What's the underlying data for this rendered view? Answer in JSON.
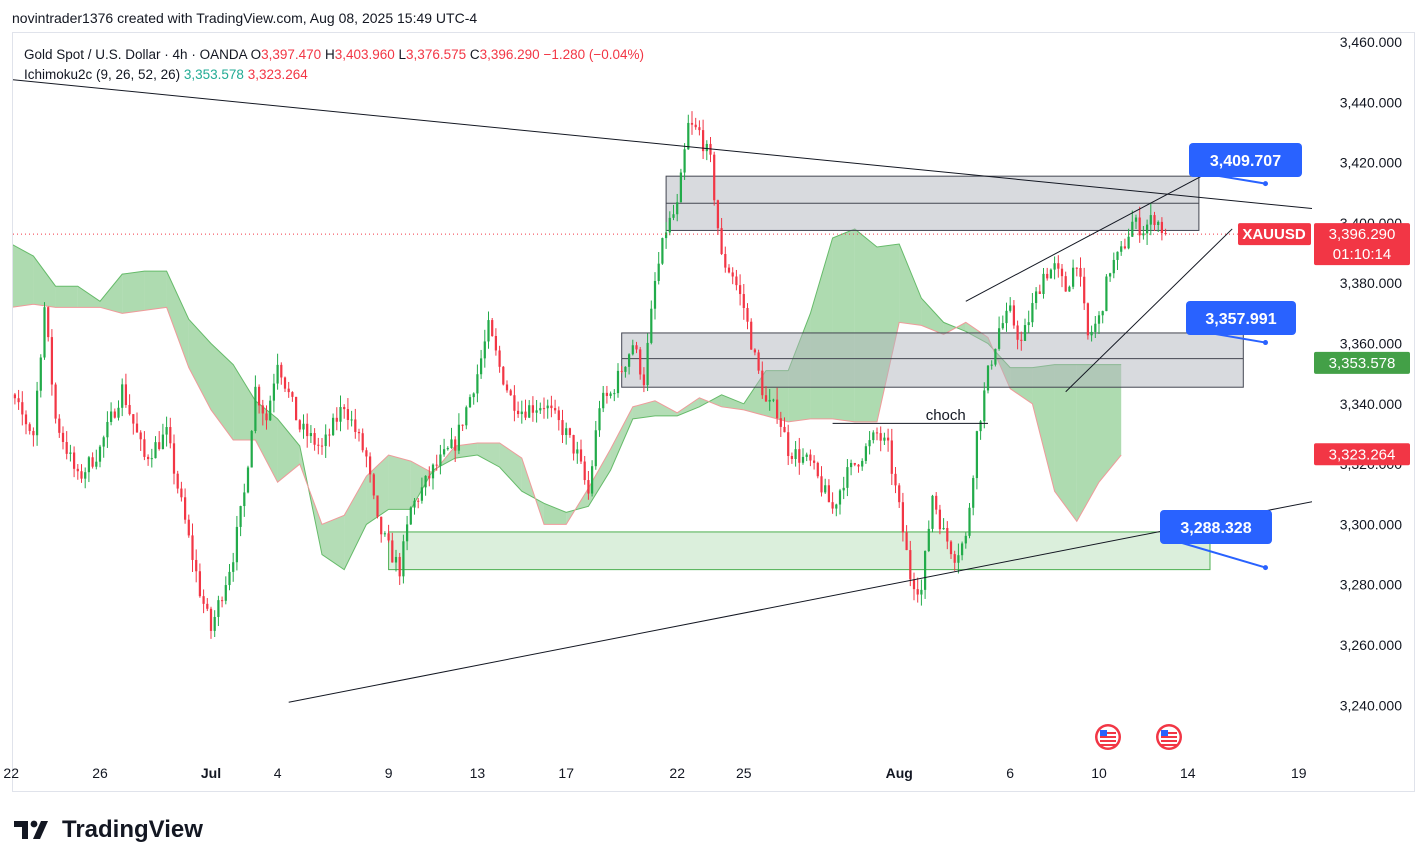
{
  "header": {
    "text": "novintrader1376 created with TradingView.com, Aug 08, 2025 15:49 UTC-4"
  },
  "legend": {
    "symbol": "Gold Spot / U.S. Dollar · 4h · OANDA",
    "o_label": "O",
    "o": "3,397.470",
    "h_label": "H",
    "h": "3,403.960",
    "l_label": "L",
    "l": "3,376.575",
    "c_label": "C",
    "c": "3,396.290",
    "change": "−1.280 (−0.04%)",
    "indicator": "Ichimoku2c (9, 26, 52, 26)",
    "ind_val1": "3,353.578",
    "ind_val2": "3,323.264"
  },
  "colors": {
    "up": "#089981",
    "candle_up": "#22ab4a",
    "down": "#f23645",
    "cloud": "#4caf50",
    "zone_gray": "#b2b5be",
    "zone_green": "#4caf50",
    "badge_blue": "#2962ff",
    "price_tag": "#f23645",
    "ind_green": "#43a047"
  },
  "brand": {
    "name": "TradingView"
  },
  "chart_data": {
    "type": "candlestick",
    "title": "Gold Spot / U.S. Dollar · 4h · OANDA",
    "symbol": "XAUUSD",
    "ylim": [
      3230,
      3465
    ],
    "y_ticks": [
      "3,460.000",
      "3,440.000",
      "3,420.000",
      "3,400.000",
      "3,380.000",
      "3,360.000",
      "3,340.000",
      "3,320.000",
      "3,300.000",
      "3,280.000",
      "3,260.000",
      "3,240.000"
    ],
    "y_tick_values": [
      3460,
      3440,
      3420,
      3400,
      3380,
      3360,
      3340,
      3320,
      3300,
      3280,
      3260,
      3240
    ],
    "x_ticks": [
      "22",
      "26",
      "Jul",
      "4",
      "9",
      "13",
      "17",
      "22",
      "25",
      "Aug",
      "6",
      "10",
      "14",
      "19"
    ],
    "x_tick_days": [
      -9,
      -5,
      0,
      3,
      8,
      12,
      16,
      21,
      24,
      31,
      36,
      40,
      44,
      49
    ],
    "x_unit": "days since Jul 1, 2025",
    "bold_ticks": [
      "Jul",
      "Aug"
    ],
    "waypoints": [
      [
        -10,
        3354
      ],
      [
        -9,
        3342
      ],
      [
        -8,
        3330
      ],
      [
        -7.5,
        3372
      ],
      [
        -7,
        3335
      ],
      [
        -6,
        3315
      ],
      [
        -5,
        3325
      ],
      [
        -4,
        3345
      ],
      [
        -3,
        3322
      ],
      [
        -2,
        3330
      ],
      [
        -1,
        3295
      ],
      [
        -0.5,
        3278
      ],
      [
        0,
        3265
      ],
      [
        1,
        3290
      ],
      [
        1.5,
        3310
      ],
      [
        2,
        3345
      ],
      [
        2.5,
        3335
      ],
      [
        3,
        3355
      ],
      [
        3.5,
        3343
      ],
      [
        4,
        3332
      ],
      [
        5,
        3325
      ],
      [
        6,
        3340
      ],
      [
        7,
        3322
      ],
      [
        7.5,
        3300
      ],
      [
        8,
        3292
      ],
      [
        8.5,
        3285
      ],
      [
        9,
        3305
      ],
      [
        10,
        3318
      ],
      [
        11,
        3327
      ],
      [
        12,
        3350
      ],
      [
        12.5,
        3365
      ],
      [
        13,
        3352
      ],
      [
        13.5,
        3342
      ],
      [
        14,
        3338
      ],
      [
        15,
        3340
      ],
      [
        16,
        3330
      ],
      [
        16.5,
        3323
      ],
      [
        17,
        3310
      ],
      [
        17.5,
        3340
      ],
      [
        18,
        3343
      ],
      [
        19,
        3360
      ],
      [
        19.5,
        3348
      ],
      [
        20,
        3380
      ],
      [
        20.5,
        3398
      ],
      [
        21,
        3405
      ],
      [
        21.5,
        3432
      ],
      [
        22,
        3430
      ],
      [
        22.5,
        3420
      ],
      [
        23,
        3388
      ],
      [
        23.5,
        3383
      ],
      [
        24,
        3372
      ],
      [
        24.5,
        3355
      ],
      [
        25,
        3340
      ],
      [
        25.5,
        3338
      ],
      [
        26,
        3325
      ],
      [
        27,
        3320
      ],
      [
        28,
        3305
      ],
      [
        28.5,
        3315
      ],
      [
        29,
        3320
      ],
      [
        30,
        3330
      ],
      [
        30.5,
        3325
      ],
      [
        31,
        3305
      ],
      [
        31.5,
        3283
      ],
      [
        32,
        3278
      ],
      [
        32.5,
        3310
      ],
      [
        33,
        3297
      ],
      [
        33.5,
        3290
      ],
      [
        34,
        3295
      ],
      [
        34.5,
        3330
      ],
      [
        35,
        3350
      ],
      [
        35.5,
        3365
      ],
      [
        36,
        3370
      ],
      [
        36.5,
        3360
      ],
      [
        37,
        3372
      ],
      [
        37.5,
        3383
      ],
      [
        38,
        3385
      ],
      [
        38.5,
        3378
      ],
      [
        39,
        3388
      ],
      [
        39.5,
        3362
      ],
      [
        40,
        3368
      ],
      [
        40.5,
        3385
      ],
      [
        41,
        3390
      ],
      [
        41.5,
        3400
      ],
      [
        42,
        3398
      ],
      [
        42.5,
        3402
      ],
      [
        43,
        3396.29
      ]
    ],
    "ichimoku": {
      "conversion": 3353.578,
      "base": 3323.264,
      "cloud_boundaries": [
        [
          -10,
          3397,
          3372
        ],
        [
          -9,
          3393,
          3372
        ],
        [
          -8,
          3389,
          3373
        ],
        [
          -7,
          3379,
          3372
        ],
        [
          -6,
          3379,
          3372
        ],
        [
          -5,
          3374,
          3372
        ],
        [
          -4,
          3383,
          3370
        ],
        [
          -3,
          3384,
          3371
        ],
        [
          -2,
          3384,
          3372
        ],
        [
          -1,
          3368,
          3352
        ],
        [
          0,
          3360,
          3338
        ],
        [
          1,
          3353,
          3328
        ],
        [
          2,
          3341,
          3328
        ],
        [
          3,
          3335,
          3314
        ],
        [
          4,
          3326,
          3320
        ],
        [
          5,
          3290,
          3300
        ],
        [
          6,
          3285,
          3303
        ],
        [
          7,
          3300,
          3316
        ],
        [
          8,
          3305,
          3323
        ],
        [
          9,
          3305,
          3321
        ],
        [
          10,
          3318,
          3317
        ],
        [
          11,
          3322,
          3326
        ],
        [
          12,
          3323,
          3327
        ],
        [
          13,
          3319,
          3327
        ],
        [
          14,
          3311,
          3322
        ],
        [
          15,
          3307,
          3300
        ],
        [
          16,
          3304,
          3300
        ],
        [
          17,
          3306,
          3312
        ],
        [
          18,
          3318,
          3325
        ],
        [
          19,
          3335,
          3339
        ],
        [
          20,
          3336,
          3341
        ],
        [
          21,
          3336,
          3337
        ],
        [
          22,
          3339,
          3342
        ],
        [
          23,
          3343,
          3339
        ],
        [
          24,
          3340,
          3338
        ],
        [
          25,
          3351,
          3336
        ],
        [
          26,
          3351,
          3334
        ],
        [
          27,
          3370,
          3335
        ],
        [
          28,
          3395,
          3335
        ],
        [
          29,
          3398,
          3334
        ],
        [
          30,
          3392,
          3334
        ],
        [
          31,
          3393,
          3367
        ],
        [
          32,
          3375,
          3366
        ],
        [
          33,
          3367,
          3363
        ],
        [
          34,
          3364,
          3367
        ],
        [
          35,
          3360,
          3362
        ],
        [
          36,
          3352,
          3345
        ],
        [
          37,
          3352,
          3340
        ],
        [
          38,
          3353,
          3311
        ],
        [
          39,
          3353,
          3301
        ],
        [
          40,
          3353,
          3314
        ],
        [
          41,
          3353,
          3323
        ]
      ]
    },
    "zones": [
      {
        "kind": "resistance",
        "top": 3415.5,
        "mid": 3406.5,
        "bottom": 3397.5,
        "start": 20.5,
        "end": 44.5
      },
      {
        "kind": "mid",
        "top": 3363.5,
        "mid": 3355,
        "bottom": 3345.5,
        "start": 18.5,
        "end": 46.5
      },
      {
        "kind": "support",
        "top": 3297.5,
        "bottom": 3285,
        "start": 8,
        "end": 45
      }
    ],
    "trendlines": [
      {
        "from": [
          -11,
          3449
        ],
        "to": [
          52,
          3403
        ]
      },
      {
        "from": [
          3.5,
          3241
        ],
        "to": [
          52,
          3311
        ]
      },
      {
        "from": [
          34,
          3374
        ],
        "to": [
          45,
          3417
        ]
      },
      {
        "from": [
          38.5,
          3344
        ],
        "to": [
          46,
          3398
        ]
      }
    ],
    "annotations": [
      {
        "text": "choch",
        "x": 33.5,
        "y": 3335,
        "line": [
          28,
          3333.5,
          35,
          3333.5
        ]
      }
    ],
    "badges": [
      {
        "text": "3,409.707",
        "price": 3409.707,
        "anchor_day": 47.5
      },
      {
        "text": "3,357.991",
        "price": 3357.991,
        "anchor_day": 47.5
      },
      {
        "text": "3,288.328",
        "price": 3288.328,
        "anchor_day": 47.5
      }
    ],
    "price_tags": [
      {
        "label": "XAUUSD",
        "value": "3,396.290",
        "countdown": "01:10:14",
        "price": 3396.29,
        "color": "#f23645"
      },
      {
        "value": "3,353.578",
        "price": 3353.578,
        "color": "#43a047"
      },
      {
        "value": "3,323.264",
        "price": 3323.264,
        "color": "#f23645"
      }
    ],
    "current_price": 3396.29
  }
}
